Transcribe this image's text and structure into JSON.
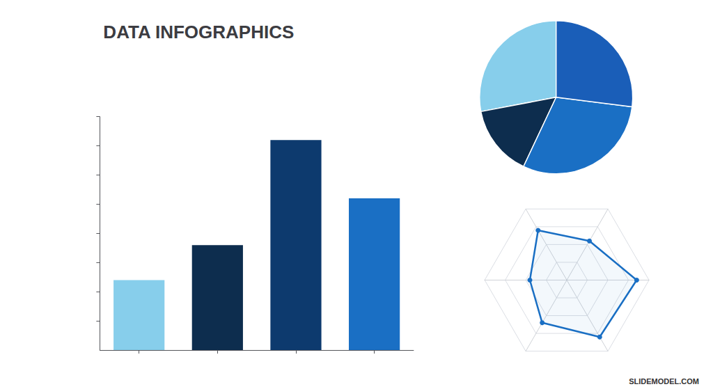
{
  "chart_data": [
    {
      "type": "bar",
      "title": "DATA INFOGRAPHICS",
      "categories": [
        null,
        null,
        null,
        null
      ],
      "values": [
        3,
        4.5,
        9,
        6.5
      ],
      "colors": [
        "#87CEEB",
        "#0d2d4e",
        "#0d3a6e",
        "#1a6fc4"
      ],
      "ylim": [
        0,
        10
      ],
      "yticks": [
        1.25,
        2.5,
        3.75,
        5,
        6.25,
        7.5,
        8.75,
        10
      ],
      "grid": false,
      "tick_labels": false
    },
    {
      "type": "pie",
      "values": [
        28,
        15,
        30,
        27
      ],
      "colors": [
        "#87CEEB",
        "#0d2d4e",
        "#1a6fc4",
        "#1a5eb8"
      ]
    },
    {
      "type": "radar",
      "categories": [
        null,
        null,
        null,
        null,
        null,
        null
      ],
      "values": [
        0.85,
        0.55,
        0.7,
        0.45,
        0.6,
        0.8
      ],
      "color": "#1a6fc4",
      "ylim": [
        0,
        1
      ],
      "yticks": [
        0.25,
        0.5,
        0.75,
        1
      ],
      "marker": "o",
      "tick_labels": false,
      "annotations": [
        "SLIDEMODEL.COM"
      ]
    }
  ]
}
